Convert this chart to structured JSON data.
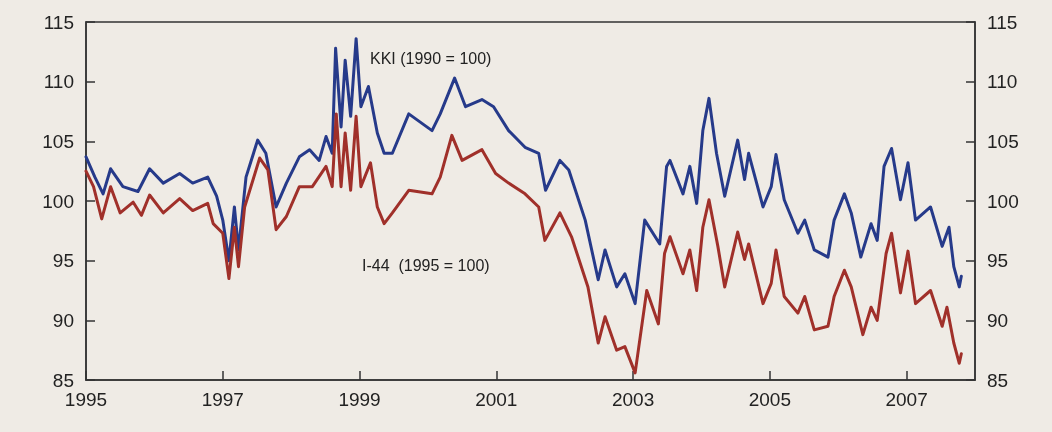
{
  "chart_data": {
    "type": "line",
    "xlim": [
      1995,
      2008
    ],
    "xticks": [
      1995,
      1997,
      1999,
      2001,
      2003,
      2005,
      2007
    ],
    "ylim": [
      85,
      115
    ],
    "yticks": [
      85,
      90,
      95,
      100,
      105,
      110,
      115
    ],
    "y2lim": [
      85,
      115
    ],
    "y2ticks": [
      85,
      90,
      95,
      100,
      105,
      110,
      115
    ],
    "grid": false,
    "marker": "none",
    "line_style": "solid",
    "annotations": [
      "KKI (1990 = 100)",
      "I-44  (1995 = 100)"
    ],
    "series": [
      {
        "color": "#263a8a",
        "x": [
          1995.0,
          1995.13,
          1995.25,
          1995.36,
          1995.54,
          1995.76,
          1995.93,
          1996.13,
          1996.37,
          1996.56,
          1996.78,
          1996.91,
          1997.0,
          1997.09,
          1997.17,
          1997.23,
          1997.34,
          1997.51,
          1997.63,
          1997.78,
          1997.93,
          1998.12,
          1998.27,
          1998.41,
          1998.51,
          1998.6,
          1998.65,
          1998.73,
          1998.79,
          1998.87,
          1998.95,
          1999.02,
          1999.13,
          1999.26,
          1999.36,
          1999.48,
          1999.72,
          2000.06,
          2000.18,
          2000.39,
          2000.55,
          2000.79,
          2000.96,
          2001.18,
          2001.42,
          2001.62,
          2001.72,
          2001.93,
          2002.06,
          2002.3,
          2002.49,
          2002.59,
          2002.76,
          2002.88,
          2003.03,
          2003.17,
          2003.39,
          2003.49,
          2003.54,
          2003.73,
          2003.83,
          2003.93,
          2004.02,
          2004.11,
          2004.22,
          2004.34,
          2004.53,
          2004.63,
          2004.69,
          2004.9,
          2005.02,
          2005.09,
          2005.21,
          2005.41,
          2005.51,
          2005.65,
          2005.85,
          2005.94,
          2006.09,
          2006.19,
          2006.33,
          2006.48,
          2006.57,
          2006.67,
          2006.78,
          2006.91,
          2007.02,
          2007.13,
          2007.35,
          2007.52,
          2007.62,
          2007.69,
          2007.77,
          2007.8
        ],
        "values": [
          103.7,
          102.0,
          100.6,
          102.7,
          101.2,
          100.8,
          102.7,
          101.5,
          102.3,
          101.5,
          102.0,
          100.4,
          98.4,
          95.0,
          99.5,
          95.9,
          102.0,
          105.1,
          104.0,
          99.5,
          101.5,
          103.7,
          104.3,
          103.4,
          105.4,
          104.0,
          112.8,
          106.2,
          111.8,
          107.1,
          113.6,
          107.9,
          109.6,
          105.7,
          104.0,
          104.0,
          107.3,
          105.9,
          107.3,
          110.3,
          107.9,
          108.5,
          107.9,
          105.9,
          104.5,
          104.0,
          100.9,
          103.4,
          102.6,
          98.4,
          93.4,
          95.9,
          92.8,
          93.9,
          91.4,
          98.4,
          96.4,
          102.9,
          103.4,
          100.6,
          102.9,
          99.8,
          105.9,
          108.6,
          104.0,
          100.4,
          105.1,
          101.8,
          104.0,
          99.5,
          101.2,
          103.9,
          100.1,
          97.3,
          98.4,
          95.9,
          95.3,
          98.4,
          100.6,
          99.0,
          95.3,
          98.1,
          96.7,
          102.9,
          104.4,
          100.1,
          103.2,
          98.4,
          99.5,
          96.2,
          97.8,
          94.5,
          92.8,
          93.7
        ]
      },
      {
        "color": "#a0302a",
        "x": [
          1995.0,
          1995.11,
          1995.23,
          1995.36,
          1995.5,
          1995.69,
          1995.81,
          1995.93,
          1996.13,
          1996.37,
          1996.56,
          1996.78,
          1996.86,
          1997.0,
          1997.09,
          1997.17,
          1997.23,
          1997.32,
          1997.54,
          1997.66,
          1997.78,
          1997.93,
          1998.12,
          1998.31,
          1998.51,
          1998.6,
          1998.66,
          1998.73,
          1998.79,
          1998.87,
          1998.95,
          1999.02,
          1999.16,
          1999.26,
          1999.36,
          1999.48,
          1999.72,
          2000.06,
          2000.18,
          2000.35,
          2000.5,
          2000.79,
          2000.99,
          2001.18,
          2001.42,
          2001.62,
          2001.71,
          2001.93,
          2002.1,
          2002.34,
          2002.49,
          2002.59,
          2002.76,
          2002.88,
          2003.03,
          2003.2,
          2003.37,
          2003.46,
          2003.54,
          2003.73,
          2003.83,
          2003.93,
          2004.02,
          2004.11,
          2004.24,
          2004.34,
          2004.53,
          2004.63,
          2004.69,
          2004.9,
          2005.02,
          2005.09,
          2005.21,
          2005.41,
          2005.51,
          2005.65,
          2005.85,
          2005.94,
          2006.09,
          2006.19,
          2006.36,
          2006.48,
          2006.57,
          2006.7,
          2006.78,
          2006.91,
          2007.02,
          2007.13,
          2007.35,
          2007.52,
          2007.59,
          2007.69,
          2007.77,
          2007.8
        ],
        "values": [
          102.5,
          101.2,
          98.5,
          101.2,
          99.0,
          99.9,
          98.8,
          100.5,
          99.0,
          100.2,
          99.2,
          99.8,
          98.1,
          97.3,
          93.5,
          97.8,
          94.5,
          99.5,
          103.6,
          102.6,
          97.6,
          98.7,
          101.2,
          101.2,
          102.9,
          101.2,
          107.3,
          101.2,
          105.7,
          100.9,
          107.1,
          101.2,
          103.2,
          99.5,
          98.1,
          99.0,
          100.9,
          100.6,
          102.0,
          105.5,
          103.4,
          104.3,
          102.3,
          101.5,
          100.6,
          99.5,
          96.7,
          99.0,
          97.0,
          92.8,
          88.1,
          90.3,
          87.5,
          87.8,
          85.6,
          92.5,
          89.7,
          95.6,
          97.0,
          93.9,
          95.9,
          92.5,
          97.8,
          100.1,
          96.2,
          92.8,
          97.4,
          95.1,
          96.4,
          91.4,
          93.1,
          95.9,
          92.0,
          90.6,
          92.0,
          89.2,
          89.5,
          92.0,
          94.2,
          92.8,
          88.8,
          91.1,
          90.0,
          95.6,
          97.3,
          92.3,
          95.8,
          91.4,
          92.5,
          89.5,
          91.1,
          88.1,
          86.4,
          87.2
        ]
      }
    ]
  }
}
